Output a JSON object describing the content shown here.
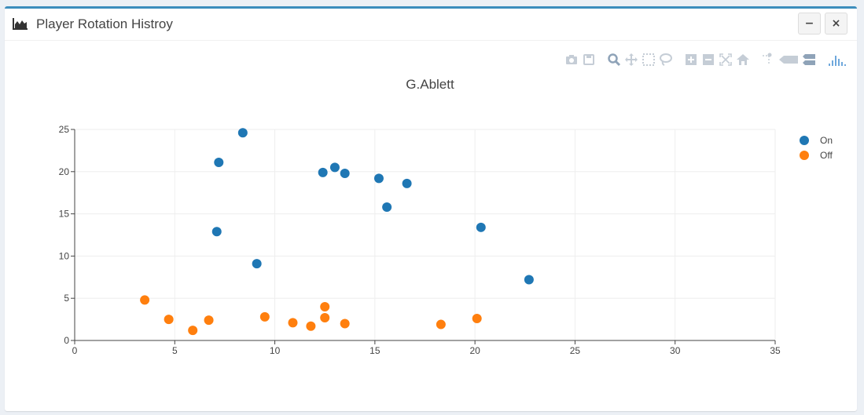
{
  "window": {
    "title": "Player Rotation Histroy",
    "title_icon": "area-chart-icon",
    "minimize_label": "−",
    "close_label": "×"
  },
  "modebar": {
    "icons": [
      "camera-icon",
      "save-icon",
      "zoom-icon",
      "pan-icon",
      "box-select-icon",
      "lasso-select-icon",
      "zoom-in-icon",
      "zoom-out-icon",
      "autoscale-icon",
      "reset-axes-icon",
      "spike-lines-icon",
      "hover-closest-icon",
      "hover-compare-icon",
      "plotly-logo-icon"
    ]
  },
  "colors": {
    "accent": "#3c8dbc",
    "on": "#1f77b4",
    "off": "#ff7f0e",
    "grid": "#eeeeee",
    "axis": "#444444"
  },
  "chart_data": {
    "type": "scatter",
    "title": "G.Ablett",
    "xlabel": "",
    "ylabel": "",
    "xlim": [
      0,
      35
    ],
    "ylim": [
      0,
      25
    ],
    "xticks": [
      0,
      5,
      10,
      15,
      20,
      25,
      30,
      35
    ],
    "yticks": [
      0,
      5,
      10,
      15,
      20,
      25
    ],
    "grid": true,
    "legend_position": "top-right",
    "series": [
      {
        "name": "On",
        "color": "#1f77b4",
        "points": [
          [
            8.4,
            24.6
          ],
          [
            7.2,
            21.1
          ],
          [
            7.1,
            12.9
          ],
          [
            9.1,
            9.1
          ],
          [
            12.4,
            19.9
          ],
          [
            13.0,
            20.5
          ],
          [
            13.5,
            19.8
          ],
          [
            15.2,
            19.2
          ],
          [
            16.6,
            18.6
          ],
          [
            15.6,
            15.8
          ],
          [
            20.3,
            13.4
          ],
          [
            22.7,
            7.2
          ]
        ]
      },
      {
        "name": "Off",
        "color": "#ff7f0e",
        "points": [
          [
            3.5,
            4.8
          ],
          [
            4.7,
            2.5
          ],
          [
            5.9,
            1.2
          ],
          [
            6.7,
            2.4
          ],
          [
            9.5,
            2.8
          ],
          [
            10.9,
            2.1
          ],
          [
            11.8,
            1.7
          ],
          [
            12.5,
            2.7
          ],
          [
            12.5,
            4.0
          ],
          [
            13.5,
            2.0
          ],
          [
            18.3,
            1.9
          ],
          [
            20.1,
            2.6
          ]
        ]
      }
    ]
  }
}
